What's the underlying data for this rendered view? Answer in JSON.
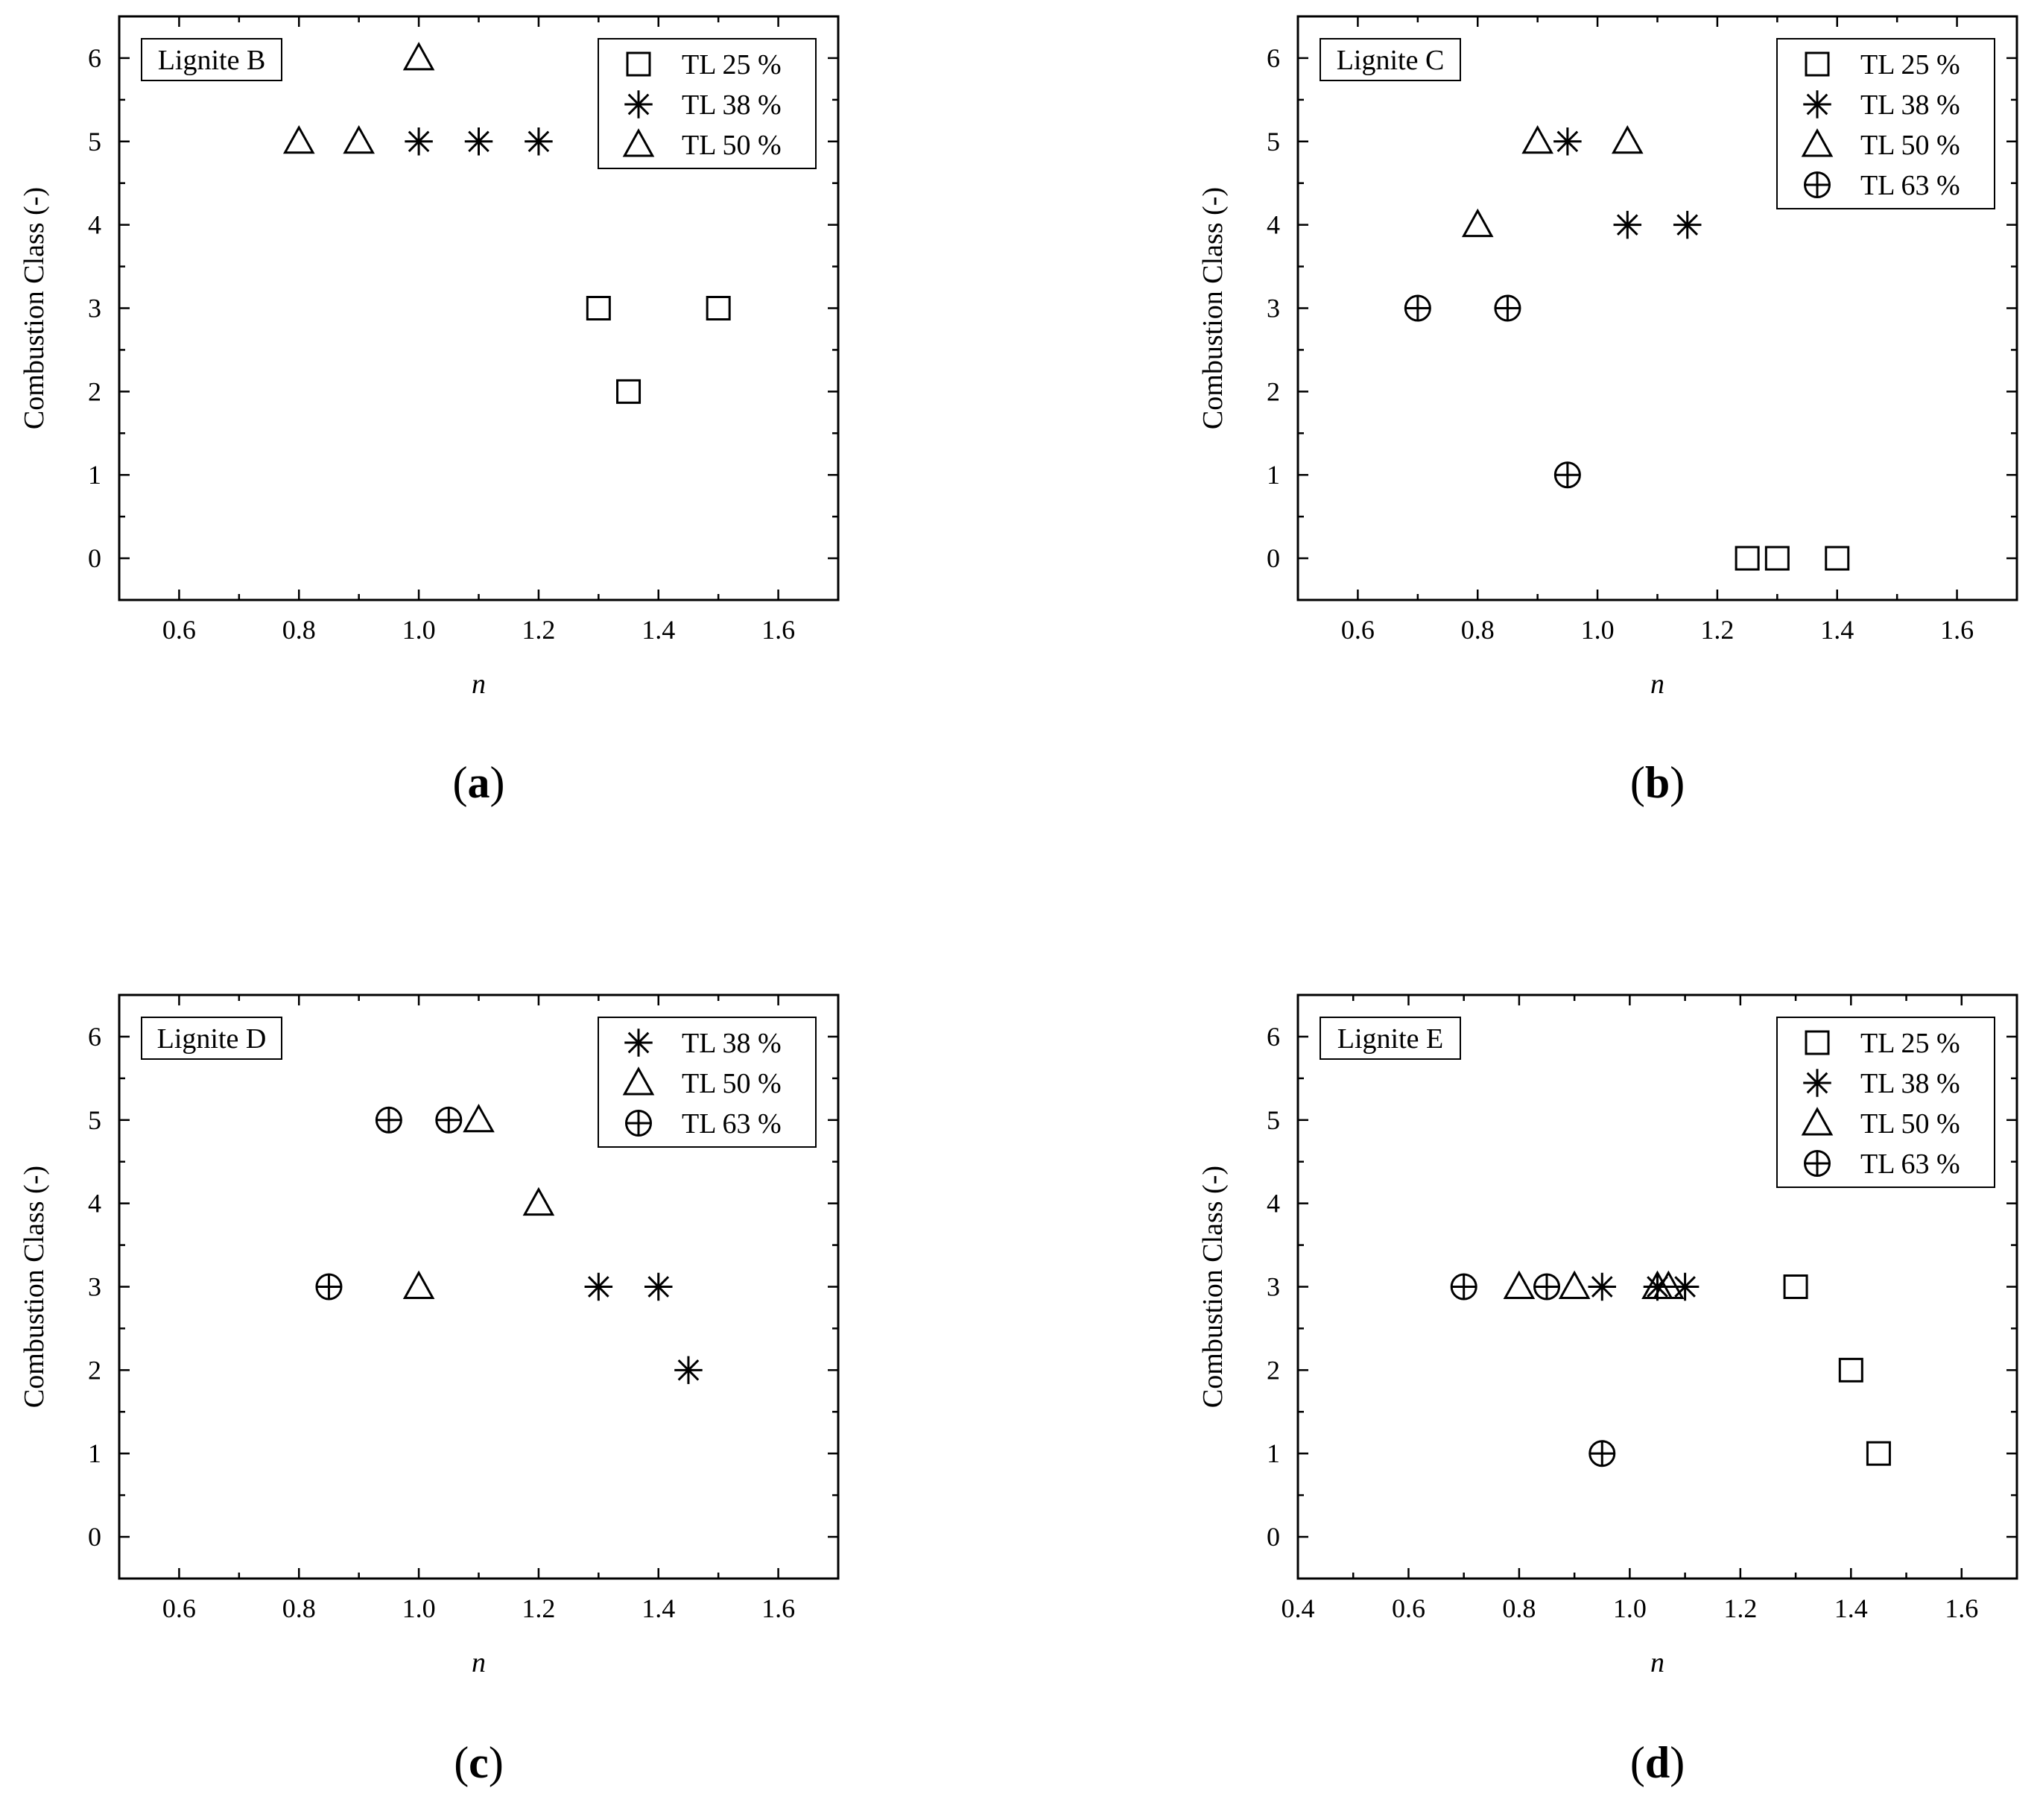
{
  "chart_data": [
    {
      "type": "scatter",
      "panel": "(a)",
      "caption_letter": "a",
      "title": "Lignite B",
      "xlabel": "n",
      "ylabel": "Combustion Class (-)",
      "xlim": [
        0.5,
        1.7
      ],
      "ylim": [
        -0.5,
        6.5
      ],
      "xticks": [
        0.6,
        0.8,
        1.0,
        1.2,
        1.4,
        1.6
      ],
      "yticks": [
        0,
        1,
        2,
        3,
        4,
        5,
        6
      ],
      "legend_position": "top-right",
      "series": [
        {
          "name": "TL 25 %",
          "marker": "square",
          "x": [
            1.3,
            1.35,
            1.5
          ],
          "y": [
            3,
            2,
            3
          ]
        },
        {
          "name": "TL 38 %",
          "marker": "asterisk",
          "x": [
            1.0,
            1.1,
            1.2
          ],
          "y": [
            5,
            5,
            5
          ]
        },
        {
          "name": "TL 50 %",
          "marker": "triangle",
          "x": [
            0.8,
            0.9,
            1.0
          ],
          "y": [
            5,
            5,
            6
          ]
        }
      ]
    },
    {
      "type": "scatter",
      "panel": "(b)",
      "caption_letter": "b",
      "title": "Lignite C",
      "xlabel": "n",
      "ylabel": "Combustion Class (-)",
      "xlim": [
        0.5,
        1.7
      ],
      "ylim": [
        -0.5,
        6.5
      ],
      "xticks": [
        0.6,
        0.8,
        1.0,
        1.2,
        1.4,
        1.6
      ],
      "yticks": [
        0,
        1,
        2,
        3,
        4,
        5,
        6
      ],
      "legend_position": "top-right",
      "series": [
        {
          "name": "TL 25 %",
          "marker": "square",
          "x": [
            1.25,
            1.3,
            1.4
          ],
          "y": [
            0,
            0,
            0
          ]
        },
        {
          "name": "TL 38 %",
          "marker": "asterisk",
          "x": [
            0.95,
            1.05,
            1.15
          ],
          "y": [
            5,
            4,
            4
          ]
        },
        {
          "name": "TL 50 %",
          "marker": "triangle",
          "x": [
            0.8,
            0.9,
            1.05
          ],
          "y": [
            4,
            5,
            5
          ]
        },
        {
          "name": "TL 63 %",
          "marker": "circleplus",
          "x": [
            0.7,
            0.85,
            0.95
          ],
          "y": [
            3,
            3,
            1
          ]
        }
      ]
    },
    {
      "type": "scatter",
      "panel": "(c)",
      "caption_letter": "c",
      "title": "Lignite D",
      "xlabel": "n",
      "ylabel": "Combustion Class (-)",
      "xlim": [
        0.5,
        1.7
      ],
      "ylim": [
        -0.5,
        6.5
      ],
      "xticks": [
        0.6,
        0.8,
        1.0,
        1.2,
        1.4,
        1.6
      ],
      "yticks": [
        0,
        1,
        2,
        3,
        4,
        5,
        6
      ],
      "legend_position": "top-right",
      "series": [
        {
          "name": "TL 38 %",
          "marker": "asterisk",
          "x": [
            1.3,
            1.4,
            1.45
          ],
          "y": [
            3,
            3,
            2
          ]
        },
        {
          "name": "TL 50 %",
          "marker": "triangle",
          "x": [
            1.0,
            1.1,
            1.2
          ],
          "y": [
            3,
            5,
            4
          ]
        },
        {
          "name": "TL 63 %",
          "marker": "circleplus",
          "x": [
            0.85,
            0.95,
            1.05
          ],
          "y": [
            3,
            5,
            5
          ]
        }
      ]
    },
    {
      "type": "scatter",
      "panel": "(d)",
      "caption_letter": "d",
      "title": "Lignite E",
      "xlabel": "n",
      "ylabel": "Combustion Class (-)",
      "xlim": [
        0.4,
        1.7
      ],
      "ylim": [
        -0.5,
        6.5
      ],
      "xticks": [
        0.4,
        0.6,
        0.8,
        1.0,
        1.2,
        1.4,
        1.6
      ],
      "yticks": [
        0,
        1,
        2,
        3,
        4,
        5,
        6
      ],
      "legend_position": "top-right",
      "series": [
        {
          "name": "TL 25 %",
          "marker": "square",
          "x": [
            1.3,
            1.4,
            1.45
          ],
          "y": [
            3,
            2,
            1
          ]
        },
        {
          "name": "TL 38 %",
          "marker": "asterisk",
          "x": [
            0.95,
            1.05,
            1.1
          ],
          "y": [
            3,
            3,
            3
          ]
        },
        {
          "name": "TL 50 %",
          "marker": "triangle",
          "x": [
            0.8,
            0.9,
            1.05,
            1.07
          ],
          "y": [
            3,
            3,
            3,
            3
          ]
        },
        {
          "name": "TL 63 %",
          "marker": "circleplus",
          "x": [
            0.7,
            0.85,
            0.95
          ],
          "y": [
            3,
            3,
            1
          ]
        }
      ]
    }
  ]
}
